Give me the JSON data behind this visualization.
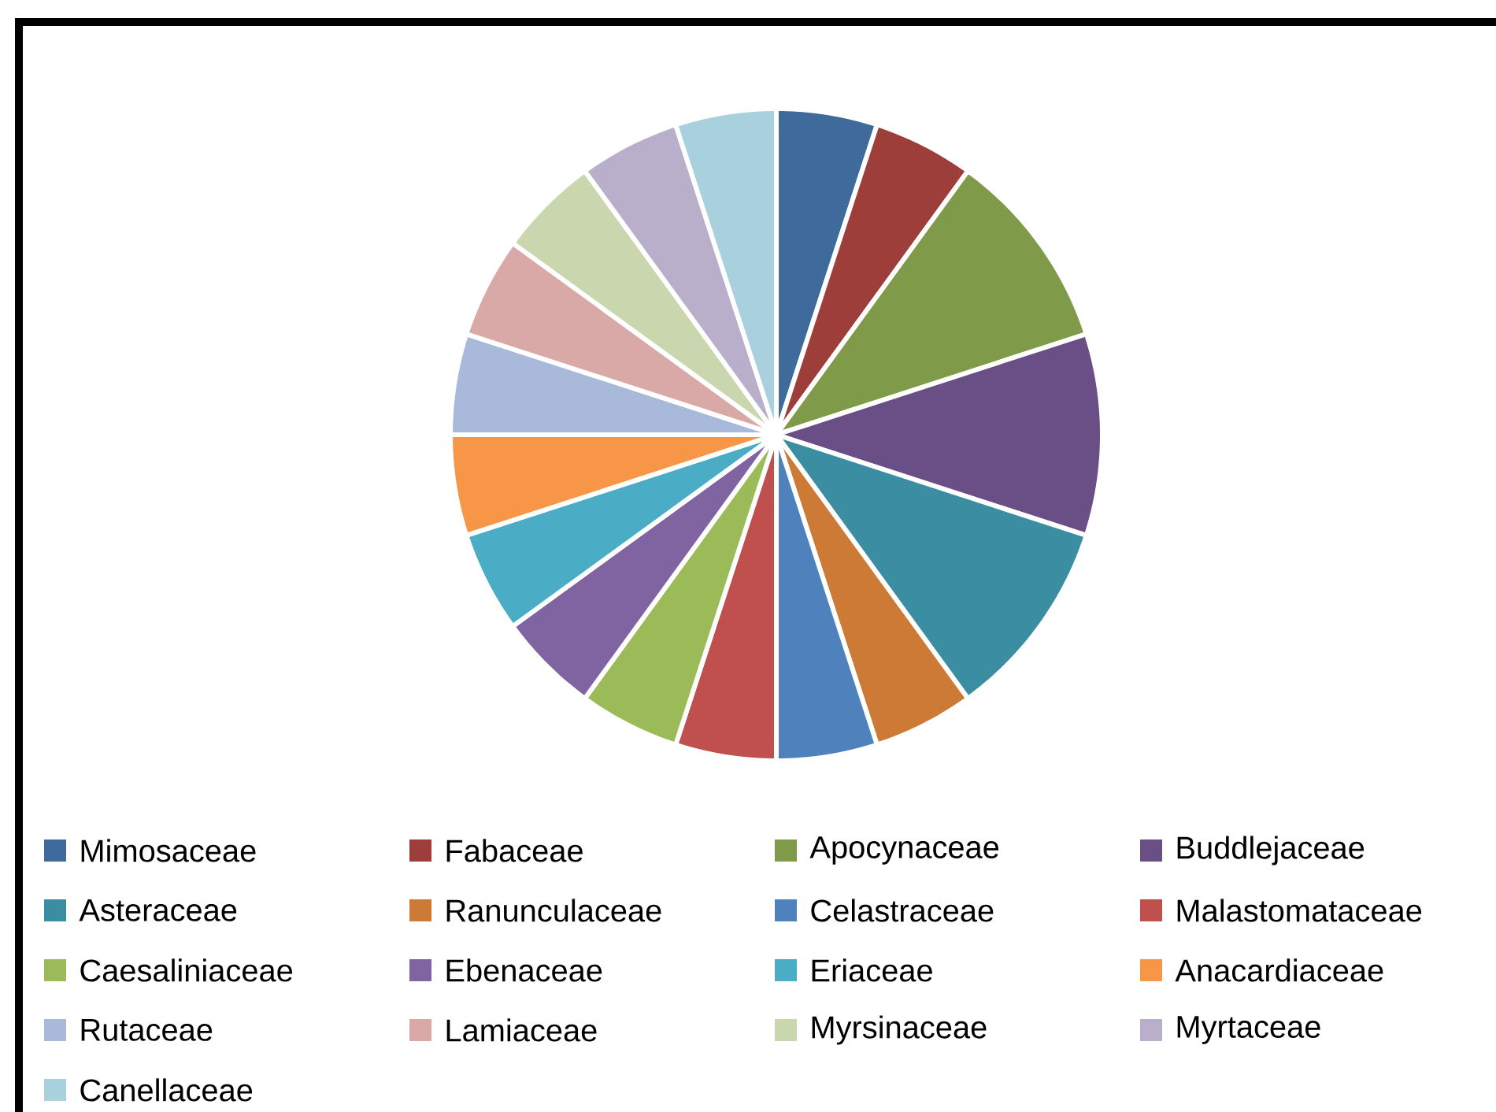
{
  "chart_data": {
    "type": "pie",
    "legend": "bottom",
    "categories": [
      "Mimosaceae",
      "Fabaceae",
      "Apocynaceae",
      "Buddlejaceae",
      "Asteraceae",
      "Ranunculaceae",
      "Celastraceae",
      "Malastomataceae",
      "Caesaliniaceae",
      "Ebenaceae",
      "Eriaceae",
      "Anacardiaceae",
      "Rutaceae",
      "Lamiaceae",
      "Myrsinaceae",
      "Myrtaceae",
      "Canellaceae"
    ],
    "values": [
      5,
      5,
      10,
      10,
      10,
      5,
      5,
      5,
      5,
      5,
      5,
      5,
      5,
      5,
      5,
      5,
      5
    ],
    "colors": [
      "#3f6a9c",
      "#9e3e3b",
      "#7f9a48",
      "#6a4f86",
      "#3b8da2",
      "#cc7a36",
      "#4f81bd",
      "#c0504d",
      "#9bbb59",
      "#8064a2",
      "#4bacc6",
      "#f79646",
      "#a9b9d9",
      "#d9a9a8",
      "#c9d6ae",
      "#baafcb",
      "#a9d0dd"
    ]
  }
}
